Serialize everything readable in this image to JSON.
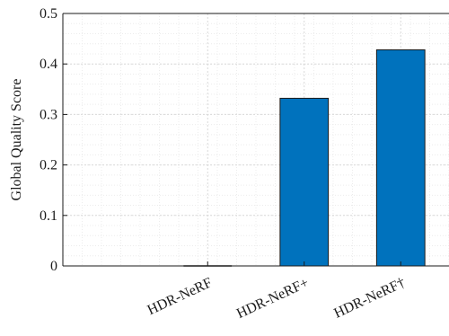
{
  "chart_data": {
    "type": "bar",
    "categories": [
      "HDR-NeRF",
      "HDR-NeRF+",
      "HDR-NeRF†"
    ],
    "values": [
      0.0,
      0.332,
      0.428
    ],
    "ylabel": "Global Quality Score",
    "xlabel": "",
    "ylim": [
      0,
      0.5
    ],
    "yticks": [
      0,
      0.1,
      0.2,
      0.3,
      0.4,
      0.5
    ],
    "ytick_labels": [
      "0",
      "0.1",
      "0.2",
      "0.3",
      "0.4",
      "0.5"
    ],
    "grid": true,
    "minor_grid": true,
    "bar_color": "#0072BD",
    "edge_color": "#1a1a1a"
  }
}
